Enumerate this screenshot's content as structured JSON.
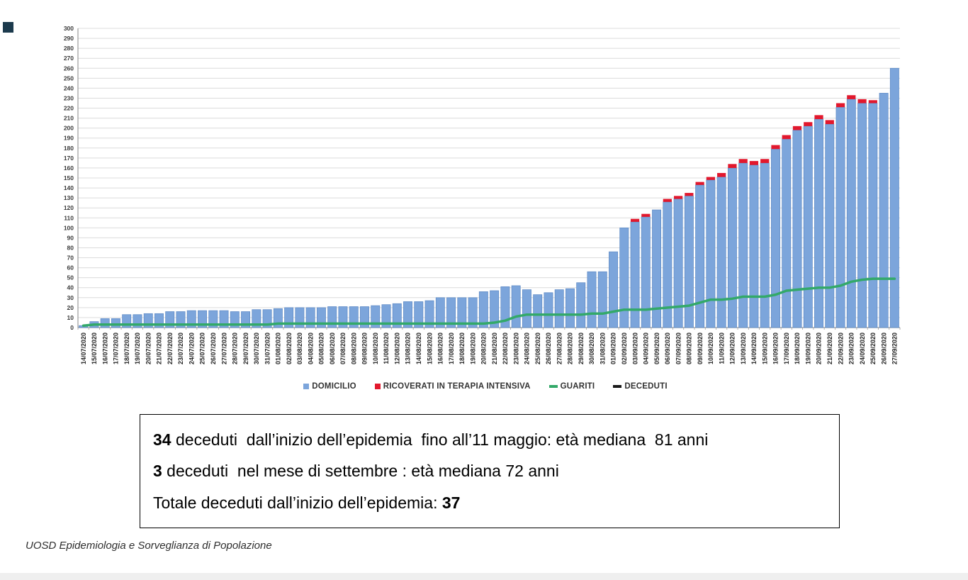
{
  "decor": {
    "corner_square_color": "#1c3a4d"
  },
  "chart_data": {
    "type": "bar",
    "stacked": true,
    "grid": true,
    "legend_position": "bottom",
    "ylim": [
      0,
      300
    ],
    "ytick_step": 10,
    "categories": [
      "14/07/2020",
      "15/07/2020",
      "16/07/2020",
      "17/07/2020",
      "18/07/2020",
      "19/07/2020",
      "20/07/2020",
      "21/07/2020",
      "22/07/2020",
      "23/07/2020",
      "24/07/2020",
      "25/07/2020",
      "26/07/2020",
      "27/07/2020",
      "28/07/2020",
      "29/07/2020",
      "30/07/2020",
      "31/07/2020",
      "01/08/2020",
      "02/08/2020",
      "03/08/2020",
      "04/08/2020",
      "05/08/2020",
      "06/08/2020",
      "07/08/2020",
      "08/08/2020",
      "09/08/2020",
      "10/08/2020",
      "11/08/2020",
      "12/08/2020",
      "13/08/2020",
      "14/08/2020",
      "15/08/2020",
      "16/08/2020",
      "17/08/2020",
      "18/08/2020",
      "19/08/2020",
      "20/08/2020",
      "21/08/2020",
      "22/08/2020",
      "23/08/2020",
      "24/08/2020",
      "25/08/2020",
      "26/08/2020",
      "27/08/2020",
      "28/08/2020",
      "29/08/2020",
      "30/08/2020",
      "31/08/2020",
      "01/09/2020",
      "02/09/2020",
      "03/09/2020",
      "04/09/2020",
      "05/09/2020",
      "06/09/2020",
      "07/09/2020",
      "08/09/2020",
      "09/09/2020",
      "10/09/2020",
      "11/09/2020",
      "12/09/2020",
      "13/09/2020",
      "14/09/2020",
      "15/09/2020",
      "16/09/2020",
      "17/09/2020",
      "18/09/2020",
      "19/09/2020",
      "20/09/2020",
      "21/09/2020",
      "22/09/2020",
      "23/09/2020",
      "24/09/2020",
      "25/09/2020",
      "26/09/2020",
      "27/09/2020"
    ],
    "series": [
      {
        "name": "DOMICILIO",
        "kind": "bar",
        "color": "#7ca5db",
        "values": [
          2,
          6,
          9,
          9,
          13,
          13,
          14,
          14,
          16,
          16,
          17,
          17,
          17,
          17,
          16,
          16,
          18,
          18,
          19,
          20,
          20,
          20,
          20,
          21,
          21,
          21,
          21,
          22,
          23,
          24,
          26,
          26,
          27,
          30,
          30,
          30,
          30,
          36,
          37,
          41,
          42,
          38,
          33,
          35,
          38,
          39,
          45,
          56,
          56,
          76,
          100,
          106,
          111,
          118,
          126,
          129,
          132,
          143,
          148,
          151,
          160,
          165,
          163,
          165,
          179,
          189,
          198,
          202,
          209,
          204,
          221,
          229,
          225,
          225,
          235,
          260
        ]
      },
      {
        "name": "RICOVERATI IN TERAPIA INTENSIVA",
        "kind": "bar",
        "color": "#e2182d",
        "values": [
          0,
          0,
          0,
          0,
          0,
          0,
          0,
          0,
          0,
          0,
          0,
          0,
          0,
          0,
          0,
          0,
          0,
          0,
          0,
          0,
          0,
          0,
          0,
          0,
          0,
          0,
          0,
          0,
          0,
          0,
          0,
          0,
          0,
          0,
          0,
          0,
          0,
          0,
          0,
          0,
          0,
          0,
          0,
          0,
          0,
          0,
          0,
          0,
          0,
          0,
          0,
          3,
          3,
          0,
          3,
          3,
          3,
          3,
          3,
          4,
          4,
          4,
          4,
          4,
          4,
          4,
          4,
          4,
          4,
          4,
          4,
          4,
          4,
          3,
          0,
          0
        ]
      },
      {
        "name": "GUARITI",
        "kind": "line",
        "color": "#33a969",
        "values": [
          2,
          3,
          3,
          3,
          3,
          3,
          3,
          3,
          3,
          3,
          3,
          3,
          3,
          3,
          3,
          3,
          3,
          3,
          4,
          4,
          4,
          4,
          4,
          4,
          4,
          4,
          4,
          4,
          4,
          4,
          4,
          4,
          4,
          4,
          4,
          4,
          4,
          4,
          5,
          7,
          11,
          13,
          13,
          13,
          13,
          13,
          13,
          14,
          14,
          16,
          18,
          18,
          18,
          19,
          20,
          21,
          22,
          25,
          28,
          28,
          29,
          31,
          31,
          31,
          33,
          37,
          38,
          39,
          40,
          40,
          42,
          46,
          48,
          49,
          49,
          49
        ]
      }
    ]
  },
  "legend": {
    "items": [
      {
        "label": "DOMICILIO",
        "marker": "square",
        "color": "#7ca5db"
      },
      {
        "label": "RICOVERATI IN TERAPIA INTENSIVA",
        "marker": "square",
        "color": "#e2182d"
      },
      {
        "label": "GUARITI",
        "marker": "dash",
        "color": "#33a969"
      },
      {
        "label": "DECEDUTI",
        "marker": "dash",
        "color": "#1a1a1a"
      }
    ]
  },
  "summary_box": {
    "lines": [
      {
        "parts": [
          {
            "text": "34",
            "bold": true
          },
          {
            "text": " deceduti  dall’inizio dell’epidemia  fino all’11 maggio: età mediana  81 anni",
            "bold": false
          }
        ]
      },
      {
        "parts": [
          {
            "text": "3",
            "bold": true
          },
          {
            "text": " deceduti  nel mese di settembre : età mediana 72 anni",
            "bold": false
          }
        ]
      },
      {
        "parts": [
          {
            "text": "Totale deceduti dall’inizio dell’epidemia: ",
            "bold": false
          },
          {
            "text": "37",
            "bold": true
          }
        ]
      }
    ]
  },
  "footer": {
    "text": "UOSD Epidemiologia e Sorveglianza di Popolazione"
  }
}
